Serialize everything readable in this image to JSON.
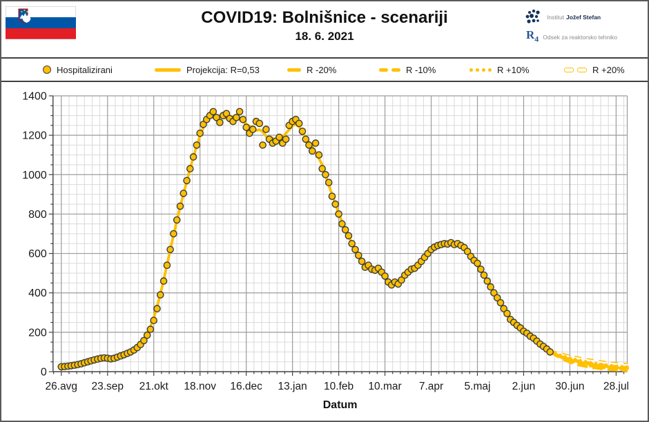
{
  "header": {
    "title": "COVID19: Bolnišnice - scenariji",
    "subtitle": "18. 6. 2021",
    "flag_name": "slovenia-flag",
    "org": {
      "institute_light": "Institut",
      "institute_bold": "Jožef Stefan",
      "dept_logo_r": "R",
      "dept_logo_4": "4",
      "dept_text": "Odsek za reaktorsko tehniko"
    }
  },
  "legend": {
    "items": [
      {
        "label": "Hospitalizirani",
        "type": "marker"
      },
      {
        "label": "Projekcija: R=0,53",
        "type": "solid-line"
      },
      {
        "label": "R -20%",
        "type": "single-dash"
      },
      {
        "label": "R -10%",
        "type": "double-dash"
      },
      {
        "label": "R +10%",
        "type": "dots"
      },
      {
        "label": "R +20%",
        "type": "hollow-dash"
      }
    ]
  },
  "chart_data": {
    "type": "scatter",
    "title": "COVID19: Bolnišnice - scenariji",
    "xlabel": "Datum",
    "ylabel": "",
    "ylim": [
      0,
      1400
    ],
    "y_major": 200,
    "y_minor": 50,
    "grid": true,
    "legend_position": "top",
    "x_tick_labels": [
      "26.avg",
      "23.sep",
      "21.okt",
      "18.nov",
      "16.dec",
      "13.jan",
      "10.feb",
      "10.mar",
      "7.apr",
      "5.maj",
      "2.jun",
      "30.jun",
      "28.jul"
    ],
    "x_tick_interval_days": 28,
    "x_minor_per_major": 6,
    "x_domain_days": [
      -5,
      342.8
    ],
    "colors": {
      "accent": "#FFC000",
      "marker_stroke": "#3D3D3D",
      "grid_minor": "#D9D9D9",
      "grid_major": "#9B9B9B",
      "axis": "#404040",
      "text": "#1A1A1A",
      "flag_blue": "#0057A8",
      "flag_red": "#E31E24",
      "navy": "#16325C",
      "gray_text": "#8A8A8A"
    },
    "series": {
      "hospitalizirani": {
        "label": "Hospitalizirani",
        "points": [
          [
            0,
            25
          ],
          [
            2,
            26
          ],
          [
            4,
            28
          ],
          [
            6,
            30
          ],
          [
            8,
            33
          ],
          [
            10,
            36
          ],
          [
            12,
            40
          ],
          [
            14,
            45
          ],
          [
            16,
            50
          ],
          [
            18,
            55
          ],
          [
            20,
            60
          ],
          [
            22,
            64
          ],
          [
            24,
            68
          ],
          [
            26,
            70
          ],
          [
            28,
            68
          ],
          [
            30,
            65
          ],
          [
            32,
            68
          ],
          [
            34,
            74
          ],
          [
            36,
            80
          ],
          [
            38,
            86
          ],
          [
            40,
            93
          ],
          [
            42,
            100
          ],
          [
            44,
            110
          ],
          [
            46,
            122
          ],
          [
            48,
            138
          ],
          [
            50,
            158
          ],
          [
            52,
            185
          ],
          [
            54,
            215
          ],
          [
            56,
            260
          ],
          [
            58,
            320
          ],
          [
            60,
            390
          ],
          [
            62,
            460
          ],
          [
            64,
            540
          ],
          [
            66,
            620
          ],
          [
            68,
            700
          ],
          [
            70,
            770
          ],
          [
            72,
            840
          ],
          [
            74,
            905
          ],
          [
            76,
            970
          ],
          [
            78,
            1030
          ],
          [
            80,
            1090
          ],
          [
            82,
            1150
          ],
          [
            84,
            1210
          ],
          [
            86,
            1255
          ],
          [
            88,
            1280
          ],
          [
            90,
            1300
          ],
          [
            92,
            1320
          ],
          [
            94,
            1290
          ],
          [
            96,
            1265
          ],
          [
            98,
            1300
          ],
          [
            100,
            1310
          ],
          [
            102,
            1285
          ],
          [
            104,
            1270
          ],
          [
            106,
            1290
          ],
          [
            108,
            1320
          ],
          [
            110,
            1280
          ],
          [
            112,
            1240
          ],
          [
            114,
            1210
          ],
          [
            116,
            1230
          ],
          [
            118,
            1270
          ],
          [
            120,
            1260
          ],
          [
            122,
            1150
          ],
          [
            124,
            1230
          ],
          [
            126,
            1180
          ],
          [
            128,
            1160
          ],
          [
            130,
            1170
          ],
          [
            132,
            1190
          ],
          [
            134,
            1160
          ],
          [
            136,
            1180
          ],
          [
            138,
            1250
          ],
          [
            140,
            1270
          ],
          [
            142,
            1280
          ],
          [
            144,
            1260
          ],
          [
            146,
            1220
          ],
          [
            148,
            1180
          ],
          [
            150,
            1150
          ],
          [
            152,
            1120
          ],
          [
            154,
            1160
          ],
          [
            156,
            1100
          ],
          [
            158,
            1030
          ],
          [
            160,
            1000
          ],
          [
            162,
            960
          ],
          [
            164,
            890
          ],
          [
            166,
            850
          ],
          [
            168,
            800
          ],
          [
            170,
            750
          ],
          [
            172,
            720
          ],
          [
            174,
            690
          ],
          [
            176,
            650
          ],
          [
            178,
            620
          ],
          [
            180,
            590
          ],
          [
            182,
            560
          ],
          [
            184,
            530
          ],
          [
            186,
            540
          ],
          [
            188,
            520
          ],
          [
            190,
            515
          ],
          [
            192,
            525
          ],
          [
            194,
            505
          ],
          [
            196,
            485
          ],
          [
            198,
            455
          ],
          [
            200,
            440
          ],
          [
            202,
            455
          ],
          [
            204,
            445
          ],
          [
            206,
            465
          ],
          [
            208,
            490
          ],
          [
            210,
            505
          ],
          [
            212,
            520
          ],
          [
            214,
            525
          ],
          [
            216,
            540
          ],
          [
            218,
            560
          ],
          [
            220,
            580
          ],
          [
            222,
            600
          ],
          [
            224,
            620
          ],
          [
            226,
            632
          ],
          [
            228,
            640
          ],
          [
            230,
            645
          ],
          [
            232,
            650
          ],
          [
            234,
            648
          ],
          [
            236,
            655
          ],
          [
            238,
            645
          ],
          [
            240,
            650
          ],
          [
            242,
            640
          ],
          [
            244,
            630
          ],
          [
            246,
            610
          ],
          [
            248,
            585
          ],
          [
            250,
            565
          ],
          [
            252,
            550
          ],
          [
            254,
            520
          ],
          [
            256,
            490
          ],
          [
            258,
            460
          ],
          [
            260,
            430
          ],
          [
            262,
            400
          ],
          [
            264,
            375
          ],
          [
            266,
            350
          ],
          [
            268,
            320
          ],
          [
            270,
            295
          ],
          [
            272,
            265
          ],
          [
            274,
            250
          ],
          [
            276,
            235
          ],
          [
            278,
            222
          ],
          [
            280,
            205
          ],
          [
            282,
            195
          ],
          [
            284,
            180
          ],
          [
            286,
            170
          ],
          [
            288,
            155
          ],
          [
            290,
            140
          ],
          [
            292,
            128
          ],
          [
            294,
            115
          ],
          [
            296,
            100
          ]
        ]
      },
      "projekcija": {
        "label": "Projekcija: R=0,53",
        "points": [
          [
            296,
            100
          ],
          [
            302,
            79
          ],
          [
            308,
            62
          ],
          [
            314,
            48
          ],
          [
            320,
            38
          ],
          [
            326,
            30
          ],
          [
            332,
            24
          ],
          [
            338,
            19
          ],
          [
            343,
            17
          ]
        ]
      },
      "r_minus20": {
        "label": "R -20%",
        "points": [
          [
            296,
            100
          ],
          [
            302,
            70
          ],
          [
            308,
            48
          ],
          [
            314,
            33
          ],
          [
            320,
            23
          ],
          [
            326,
            16
          ],
          [
            332,
            11
          ],
          [
            338,
            7
          ],
          [
            343,
            5
          ]
        ]
      },
      "r_minus10": {
        "label": "R -10%",
        "points": [
          [
            296,
            100
          ],
          [
            302,
            75
          ],
          [
            308,
            55
          ],
          [
            314,
            41
          ],
          [
            320,
            30
          ],
          [
            326,
            22
          ],
          [
            332,
            16
          ],
          [
            338,
            12
          ],
          [
            343,
            10
          ]
        ]
      },
      "r_plus10": {
        "label": "R +10%",
        "points": [
          [
            296,
            100
          ],
          [
            302,
            84
          ],
          [
            308,
            69
          ],
          [
            314,
            57
          ],
          [
            320,
            47
          ],
          [
            326,
            39
          ],
          [
            332,
            32
          ],
          [
            338,
            27
          ],
          [
            343,
            24
          ]
        ]
      },
      "r_plus20": {
        "label": "R +20%",
        "points": [
          [
            296,
            100
          ],
          [
            302,
            88
          ],
          [
            308,
            76
          ],
          [
            314,
            65
          ],
          [
            320,
            56
          ],
          [
            326,
            48
          ],
          [
            332,
            42
          ],
          [
            338,
            36
          ],
          [
            343,
            33
          ]
        ]
      }
    }
  }
}
